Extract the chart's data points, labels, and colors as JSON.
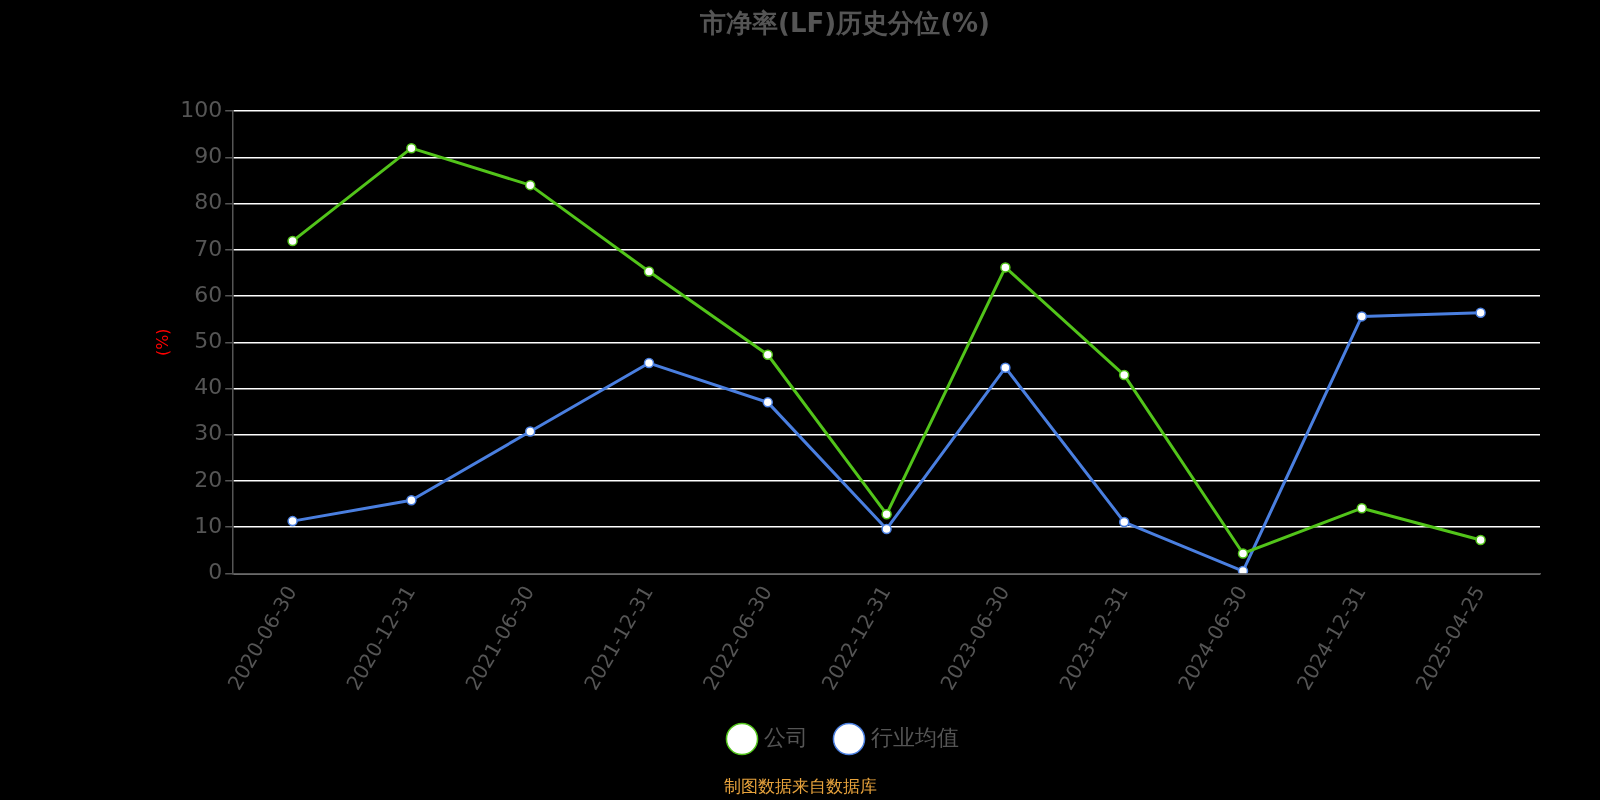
{
  "chart_data": {
    "type": "line",
    "title": "市净率(LF)历史分位(%)",
    "ylabel": "(%)",
    "categories": [
      "2020-06-30",
      "2020-12-31",
      "2021-06-30",
      "2021-12-31",
      "2022-06-30",
      "2022-12-31",
      "2023-06-30",
      "2023-12-31",
      "2024-06-30",
      "2024-12-31",
      "2025-04-25"
    ],
    "series": [
      {
        "name": "公司",
        "color": "#52c41a",
        "values": [
          71.9,
          92,
          84,
          65.3,
          47.3,
          12.8,
          66.2,
          42.9,
          4.3,
          14.1,
          7.2
        ]
      },
      {
        "name": "行业均值",
        "color": "#4a7fe0",
        "values": [
          11.3,
          15.8,
          30.7,
          45.5,
          37,
          9.6,
          44.5,
          11.1,
          0.5,
          55.6,
          56.4
        ]
      }
    ],
    "ylim": [
      0,
      100
    ],
    "yticks": [
      0,
      10,
      20,
      30,
      40,
      50,
      60,
      70,
      80,
      90,
      100
    ],
    "grid": "y",
    "legend": "bottom",
    "marker": "circle",
    "line_style": "solid",
    "annotations": [
      "制图数据来自数据库"
    ]
  }
}
